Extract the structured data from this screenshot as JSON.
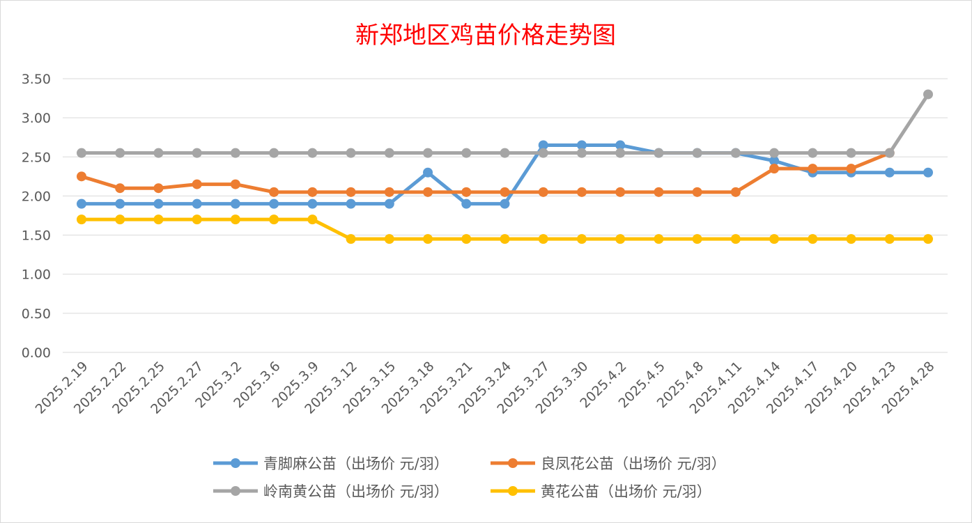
{
  "chart_data": {
    "type": "line",
    "title": "新郑地区鸡苗价格走势图",
    "xlabel": "",
    "ylabel": "",
    "ylim": [
      0,
      3.5
    ],
    "yticks": [
      "0.00",
      "0.50",
      "1.00",
      "1.50",
      "2.00",
      "2.50",
      "3.00",
      "3.50"
    ],
    "grid": true,
    "legend_position": "bottom",
    "categories": [
      "2025.2.19",
      "2025.2.22",
      "2025.2.25",
      "2025.2.27",
      "2025.3.2",
      "2025.3.6",
      "2025.3.9",
      "2025.3.12",
      "2025.3.15",
      "2025.3.18",
      "2025.3.21",
      "2025.3.24",
      "2025.3.27",
      "2025.3.30",
      "2025.4.2",
      "2025.4.5",
      "2025.4.8",
      "2025.4.11",
      "2025.4.14",
      "2025.4.17",
      "2025.4.20",
      "2025.4.23",
      "2025.4.28"
    ],
    "series": [
      {
        "name": "青脚麻公苗（出场价 元/羽）",
        "color": "#5b9bd5",
        "values": [
          1.9,
          1.9,
          1.9,
          1.9,
          1.9,
          1.9,
          1.9,
          1.9,
          1.9,
          2.3,
          1.9,
          1.9,
          2.65,
          2.65,
          2.65,
          2.55,
          2.55,
          2.55,
          2.45,
          2.3,
          2.3,
          2.3,
          2.3
        ]
      },
      {
        "name": "良凤花公苗（出场价 元/羽）",
        "color": "#ed7d31",
        "values": [
          2.25,
          2.1,
          2.1,
          2.15,
          2.15,
          2.05,
          2.05,
          2.05,
          2.05,
          2.05,
          2.05,
          2.05,
          2.05,
          2.05,
          2.05,
          2.05,
          2.05,
          2.05,
          2.35,
          2.35,
          2.35,
          2.55,
          null
        ]
      },
      {
        "name": "岭南黄公苗（出场价 元/羽）",
        "color": "#a5a5a5",
        "values": [
          2.55,
          2.55,
          2.55,
          2.55,
          2.55,
          2.55,
          2.55,
          2.55,
          2.55,
          2.55,
          2.55,
          2.55,
          2.55,
          2.55,
          2.55,
          2.55,
          2.55,
          2.55,
          2.55,
          2.55,
          2.55,
          2.55,
          3.3
        ]
      },
      {
        "name": "黄花公苗（出场价 元/羽）",
        "color": "#ffc000",
        "values": [
          1.7,
          1.7,
          1.7,
          1.7,
          1.7,
          1.7,
          1.7,
          1.45,
          1.45,
          1.45,
          1.45,
          1.45,
          1.45,
          1.45,
          1.45,
          1.45,
          1.45,
          1.45,
          1.45,
          1.45,
          1.45,
          1.45,
          1.45
        ]
      }
    ]
  }
}
